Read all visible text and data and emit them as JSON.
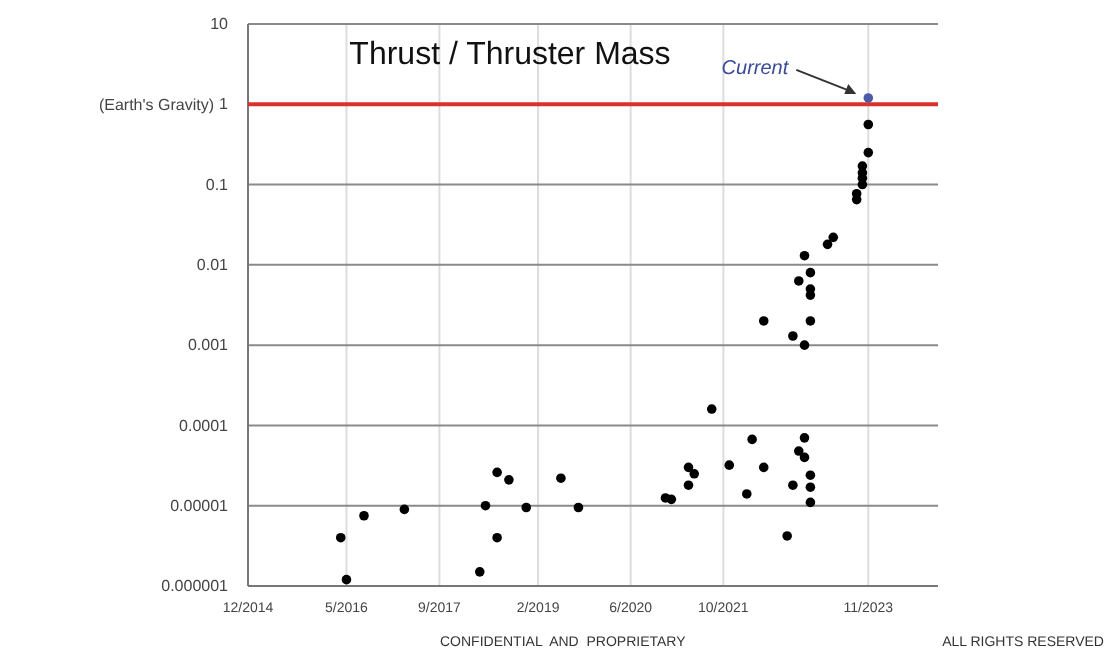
{
  "chart_data": {
    "type": "scatter",
    "title": "Thrust / Thruster Mass",
    "log": "y",
    "grid": true,
    "marker": "circle",
    "xlim": [
      "2014-12-01",
      "2024-11-01"
    ],
    "xticks": [
      {
        "value": "2014-12-01",
        "label": "12/2014"
      },
      {
        "value": "2016-05-01",
        "label": "5/2016"
      },
      {
        "value": "2017-09-01",
        "label": "9/2017"
      },
      {
        "value": "2019-02-01",
        "label": "2/2019"
      },
      {
        "value": "2020-06-01",
        "label": "6/2020"
      },
      {
        "value": "2021-10-01",
        "label": "10/2021"
      },
      {
        "value": "2023-11-01",
        "label": "11/2023"
      }
    ],
    "ylim": [
      1e-06,
      10
    ],
    "yticks": [
      {
        "value": 1e-06,
        "label": "0.000001"
      },
      {
        "value": 1e-05,
        "label": "0.00001"
      },
      {
        "value": 0.0001,
        "label": "0.0001"
      },
      {
        "value": 0.001,
        "label": "0.001"
      },
      {
        "value": 0.01,
        "label": "0.01"
      },
      {
        "value": 0.1,
        "label": "0.1"
      },
      {
        "value": 1,
        "label": "1"
      },
      {
        "value": 10,
        "label": "10"
      }
    ],
    "ref_lines": [
      {
        "axis": "y",
        "value": 1,
        "label": "(Earth's Gravity)",
        "color": "#d9312b"
      }
    ],
    "series": [
      {
        "color": "#000000",
        "x": [
          "2016-04",
          "2016-05",
          "2016-08",
          "2017-03",
          "2018-04",
          "2018-05",
          "2018-07",
          "2018-07",
          "2018-09",
          "2018-12",
          "2019-06",
          "2019-09",
          "2020-12",
          "2021-01",
          "2021-04",
          "2021-04",
          "2021-05",
          "2021-08",
          "2021-11",
          "2022-02",
          "2022-03",
          "2022-05",
          "2022-09",
          "2022-10",
          "2022-11",
          "2022-12",
          "2022-12",
          "2023-01",
          "2023-01",
          "2023-01",
          "2022-05",
          "2023-01",
          "2022-10",
          "2022-12",
          "2022-12",
          "2023-01",
          "2022-11",
          "2023-01",
          "2023-01",
          "2023-04",
          "2023-05",
          "2023-09",
          "2023-09",
          "2023-10",
          "2023-10",
          "2023-10",
          "2023-10",
          "2023-11",
          "2023-11"
        ],
        "values": [
          4e-06,
          1.2e-06,
          7.5e-06,
          9e-06,
          1.5e-06,
          1e-05,
          2.6e-05,
          4e-06,
          2.1e-05,
          9.5e-06,
          2.2e-05,
          9.5e-06,
          1.25e-05,
          1.2e-05,
          1.8e-05,
          3e-05,
          2.5e-05,
          0.00016,
          3.2e-05,
          1.4e-05,
          6.7e-05,
          3e-05,
          4.2e-06,
          1.8e-05,
          4.8e-05,
          7e-05,
          4e-05,
          2.4e-05,
          1.7e-05,
          1.1e-05,
          0.002,
          0.002,
          0.0013,
          0.001,
          0.013,
          0.008,
          0.0063,
          0.005,
          0.0042,
          0.018,
          0.022,
          0.065,
          0.077,
          0.1,
          0.12,
          0.14,
          0.17,
          0.25,
          0.56
        ]
      },
      {
        "color": "#4a5aa8",
        "x": [
          "2023-11"
        ],
        "values": [
          1.2
        ]
      }
    ],
    "annotations": [
      {
        "text": "Current",
        "x": "2023-11",
        "y": 1.2
      },
      "CONFIDENTIAL  AND  PROPRIETARY",
      "ALL RIGHTS RESERVED"
    ]
  }
}
